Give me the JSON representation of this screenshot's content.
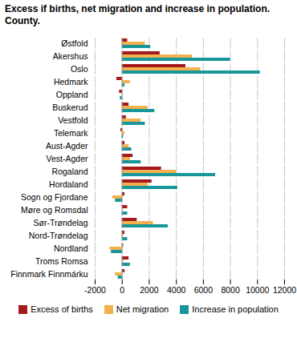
{
  "chart_data": {
    "type": "bar",
    "orientation": "horizontal",
    "title": "Excess if births, net migration and increase in population.",
    "subtitle": "County.",
    "categories": [
      "Østfold",
      "Akershus",
      "Oslo",
      "Hedmark",
      "Oppland",
      "Buskerud",
      "Vestfold",
      "Telemark",
      "Aust-Agder",
      "Vest-Agder",
      "Rogaland",
      "Hordaland",
      "Sogn og Fjordane",
      "Møre og Romsdal",
      "Sør-Trøndelag",
      "Nord-Trøndelag",
      "Nordland",
      "Troms Romsa",
      "Finnmark Finnmárku"
    ],
    "series": [
      {
        "name": "Excess of births",
        "color": "#a4191c",
        "values": [
          400,
          2800,
          4700,
          -400,
          -200,
          500,
          300,
          -100,
          200,
          800,
          2900,
          2200,
          200,
          400,
          1100,
          200,
          100,
          500,
          200
        ]
      },
      {
        "name": "Net migration",
        "color": "#f3b04e",
        "values": [
          1700,
          5200,
          5800,
          600,
          50,
          1900,
          1400,
          200,
          500,
          600,
          4000,
          1900,
          -700,
          0,
          2300,
          100,
          -900,
          100,
          -500
        ]
      },
      {
        "name": "Increase in population",
        "color": "#17979a",
        "values": [
          2100,
          8000,
          10200,
          200,
          -150,
          2400,
          1700,
          100,
          700,
          1400,
          6900,
          4100,
          -500,
          400,
          3400,
          400,
          -800,
          600,
          -300
        ]
      }
    ],
    "xlim": [
      -2000,
      12000
    ],
    "xticks": [
      -2000,
      0,
      2000,
      4000,
      6000,
      8000,
      10000,
      12000
    ],
    "grid": true,
    "legend": "bottom"
  }
}
